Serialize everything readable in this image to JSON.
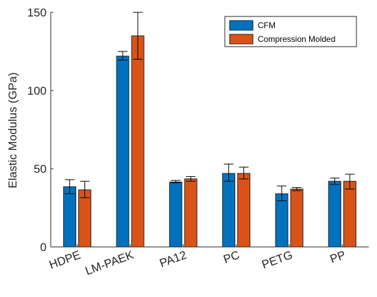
{
  "chart_data": {
    "type": "bar",
    "categories": [
      "HDPE",
      "LM-PAEK",
      "PA12",
      "PC",
      "PETG",
      "PP"
    ],
    "series": [
      {
        "name": "CFM",
        "color": "#0072BD",
        "values": [
          38.5,
          122.0,
          41.5,
          47.0,
          34.0,
          42.0
        ],
        "error_low": [
          34.0,
          119.5,
          41.0,
          42.0,
          29.5,
          40.0
        ],
        "error_high": [
          43.0,
          125.0,
          42.5,
          53.0,
          39.0,
          44.0
        ]
      },
      {
        "name": "Compression Molded",
        "color": "#D95319",
        "values": [
          36.5,
          135.0,
          43.5,
          47.0,
          37.0,
          42.0
        ],
        "error_low": [
          31.5,
          120.0,
          42.0,
          43.5,
          36.0,
          37.0
        ],
        "error_high": [
          42.0,
          150.0,
          45.0,
          51.0,
          38.0,
          46.5
        ]
      }
    ],
    "ylabel": "Elastic Modulus (GPa)",
    "xlabel": "",
    "ylim": [
      0,
      150
    ],
    "yticks": [
      0,
      50,
      100,
      150
    ],
    "grid": false,
    "legend_position": "top-right"
  }
}
